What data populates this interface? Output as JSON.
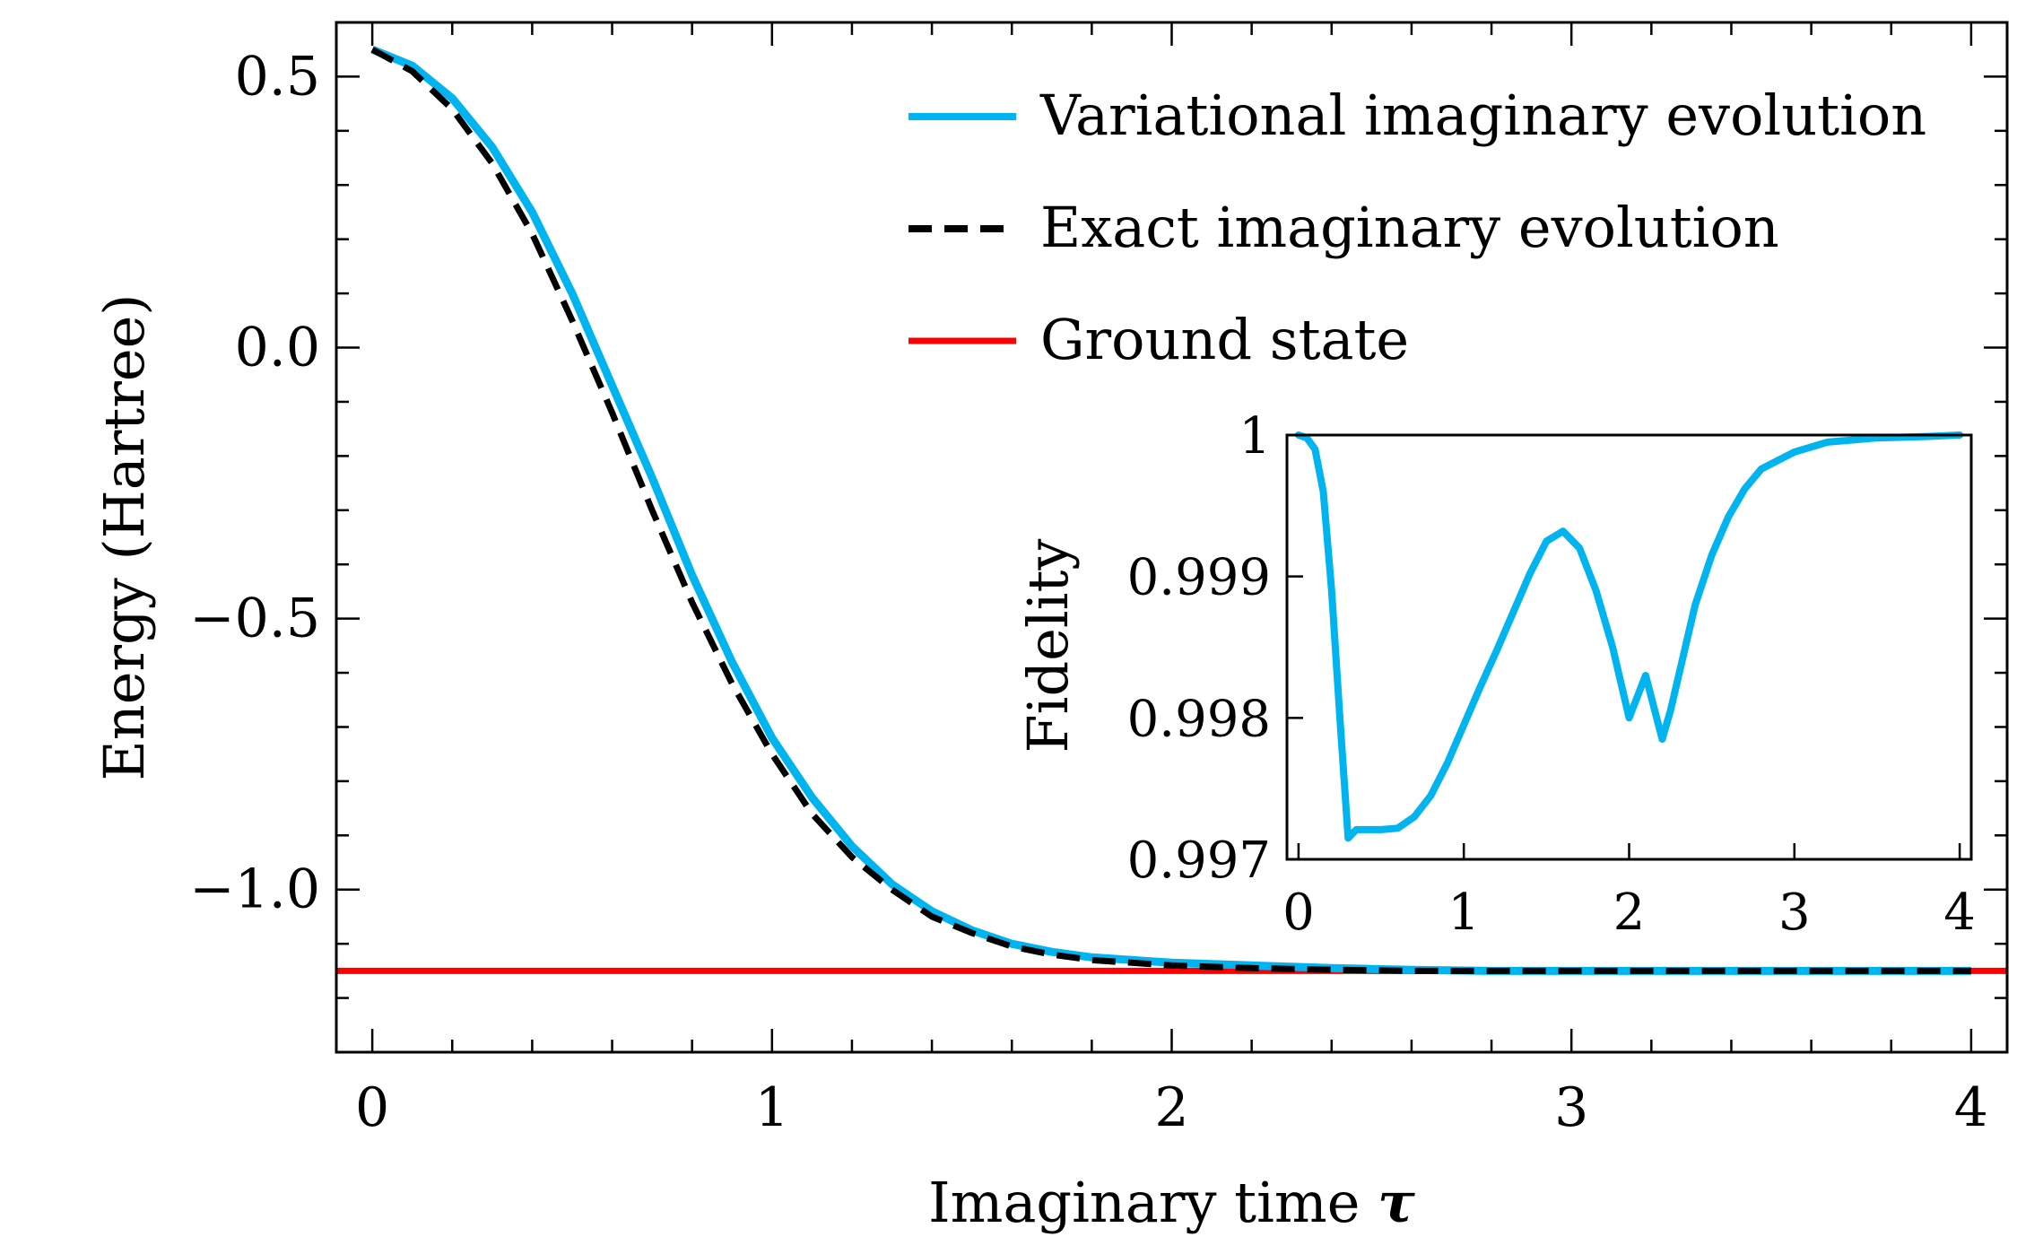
{
  "chart_data": [
    {
      "type": "line",
      "title": "",
      "xlabel": "Imaginary time",
      "xlabel_symbol": "τ",
      "ylabel": "Energy (Hartree)",
      "xlim": [
        -0.09,
        4.09
      ],
      "ylim": [
        -1.3,
        0.6
      ],
      "xticks": [
        0,
        1,
        2,
        3,
        4
      ],
      "xtick_labels": [
        "0",
        "1",
        "2",
        "3",
        "4"
      ],
      "yticks": [
        0.5,
        0.0,
        -0.5,
        -1.0
      ],
      "ytick_labels": [
        "0.5",
        "0.0",
        "−0.5",
        "−1.0"
      ],
      "grid": false,
      "legend_position": "top-right",
      "series": [
        {
          "name": "Variational imaginary evolution",
          "color": "#00b4f0",
          "style": "solid",
          "x": [
            0,
            0.1,
            0.2,
            0.3,
            0.4,
            0.5,
            0.6,
            0.7,
            0.8,
            0.9,
            1.0,
            1.1,
            1.2,
            1.3,
            1.4,
            1.5,
            1.6,
            1.7,
            1.8,
            1.9,
            2.0,
            2.2,
            2.4,
            2.6,
            2.8,
            3.0,
            3.5,
            4.0
          ],
          "y": [
            0.55,
            0.52,
            0.46,
            0.37,
            0.25,
            0.1,
            -0.07,
            -0.24,
            -0.42,
            -0.58,
            -0.72,
            -0.83,
            -0.92,
            -0.99,
            -1.04,
            -1.075,
            -1.1,
            -1.115,
            -1.125,
            -1.13,
            -1.135,
            -1.14,
            -1.145,
            -1.148,
            -1.15,
            -1.15,
            -1.15,
            -1.15
          ]
        },
        {
          "name": "Exact imaginary evolution",
          "color": "#000000",
          "style": "dashed",
          "x": [
            0,
            0.1,
            0.2,
            0.3,
            0.4,
            0.5,
            0.6,
            0.7,
            0.8,
            0.9,
            1.0,
            1.1,
            1.2,
            1.3,
            1.4,
            1.5,
            1.6,
            1.7,
            1.8,
            1.9,
            2.0,
            2.2,
            2.4,
            2.6,
            2.8,
            3.0,
            3.5,
            4.0
          ],
          "y": [
            0.55,
            0.51,
            0.44,
            0.34,
            0.21,
            0.05,
            -0.12,
            -0.3,
            -0.47,
            -0.62,
            -0.75,
            -0.86,
            -0.94,
            -1.0,
            -1.05,
            -1.08,
            -1.105,
            -1.12,
            -1.13,
            -1.135,
            -1.14,
            -1.145,
            -1.148,
            -1.15,
            -1.15,
            -1.15,
            -1.15,
            -1.15
          ]
        },
        {
          "name": "Ground state",
          "color": "#ff0000",
          "style": "solid",
          "x": [
            -0.09,
            4.09
          ],
          "y": [
            -1.15,
            -1.15
          ]
        }
      ]
    },
    {
      "type": "line",
      "title": "",
      "xlabel": "",
      "ylabel": "Fidelity",
      "xlim": [
        -0.07,
        4.07
      ],
      "ylim": [
        0.997,
        1.0
      ],
      "xticks": [
        0,
        1,
        2,
        3,
        4
      ],
      "xtick_labels": [
        "0",
        "1",
        "2",
        "3",
        "4"
      ],
      "yticks": [
        1.0,
        0.999,
        0.998,
        0.997
      ],
      "ytick_labels": [
        "1",
        "0.999",
        "0.998",
        "0.997"
      ],
      "grid": false,
      "series": [
        {
          "color": "#00b4f0",
          "style": "solid",
          "x": [
            0,
            0.05,
            0.1,
            0.15,
            0.2,
            0.25,
            0.3,
            0.35,
            0.4,
            0.5,
            0.6,
            0.7,
            0.8,
            0.9,
            1.0,
            1.1,
            1.2,
            1.3,
            1.4,
            1.5,
            1.6,
            1.7,
            1.8,
            1.9,
            2.0,
            2.1,
            2.2,
            2.25,
            2.3,
            2.4,
            2.5,
            2.6,
            2.7,
            2.8,
            3.0,
            3.2,
            3.5,
            3.8,
            4.0
          ],
          "y": [
            1.0,
            0.99998,
            0.9999,
            0.9996,
            0.9989,
            0.998,
            0.99715,
            0.99721,
            0.99721,
            0.99721,
            0.99722,
            0.9973,
            0.99745,
            0.99768,
            0.99795,
            0.99822,
            0.99848,
            0.99875,
            0.99902,
            0.99925,
            0.99932,
            0.9992,
            0.9989,
            0.9985,
            0.998,
            0.9983,
            0.99785,
            0.99805,
            0.9983,
            0.9988,
            0.99915,
            0.99942,
            0.99962,
            0.99976,
            0.99988,
            0.99995,
            0.99998,
            0.99999,
            1.0
          ]
        }
      ]
    }
  ]
}
